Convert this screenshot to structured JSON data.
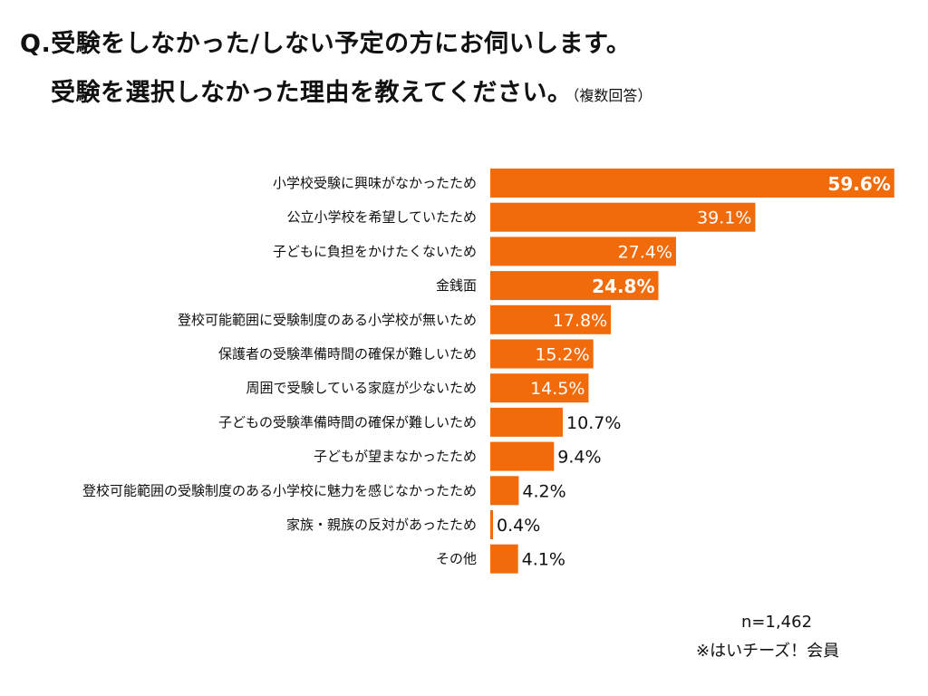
{
  "header": {
    "title_line1": "Q.受験をしなかった/しない予定の方にお伺いします。",
    "title_line2": "受験を選択しなかった理由を教えてください。",
    "title_note": "（複数回答）"
  },
  "chart_data": {
    "type": "bar",
    "orientation": "horizontal",
    "unit": "%",
    "bar_color": "#F26B0A",
    "categories": [
      "小学校受験に興味がなかったため",
      "公立小学校を希望していたため",
      "子どもに負担をかけたくないため",
      "金銭面",
      "登校可能範囲に受験制度のある小学校が無いため",
      "保護者の受験準備時間の確保が難しいため",
      "周囲で受験している家庭が少ないため",
      "子どもの受験準備時間の確保が難しいため",
      "子どもが望まなかったため",
      "登校可能範囲の受験制度のある小学校に魅力を感じなかったため",
      "家族・親族の反対があったため",
      "その他"
    ],
    "values": [
      59.6,
      39.1,
      27.4,
      24.8,
      17.8,
      15.2,
      14.5,
      10.7,
      9.4,
      4.2,
      0.4,
      4.1
    ],
    "labels": [
      "59.6%",
      "39.1%",
      "27.4%",
      "24.8%",
      "17.8%",
      "15.2%",
      "14.5%",
      "10.7%",
      "9.4%",
      "4.2%",
      "0.4%",
      "4.1%"
    ],
    "bold_labels": [
      true,
      false,
      false,
      true,
      false,
      false,
      false,
      false,
      false,
      false,
      false,
      false
    ],
    "label_colors": [
      "#ffffff",
      "#ffffff",
      "#ffffff",
      "#ffffff",
      "#ffffff",
      "#ffffff",
      "#ffffff",
      "#111111",
      "#111111",
      "#111111",
      "#111111",
      "#111111"
    ],
    "label_inside": [
      true,
      true,
      true,
      true,
      true,
      true,
      true,
      false,
      false,
      false,
      false,
      false
    ],
    "xlim": [
      0,
      60
    ],
    "grid": false
  },
  "footer": {
    "n_label": "n=1,462",
    "source": "※はいチーズ！会員"
  }
}
